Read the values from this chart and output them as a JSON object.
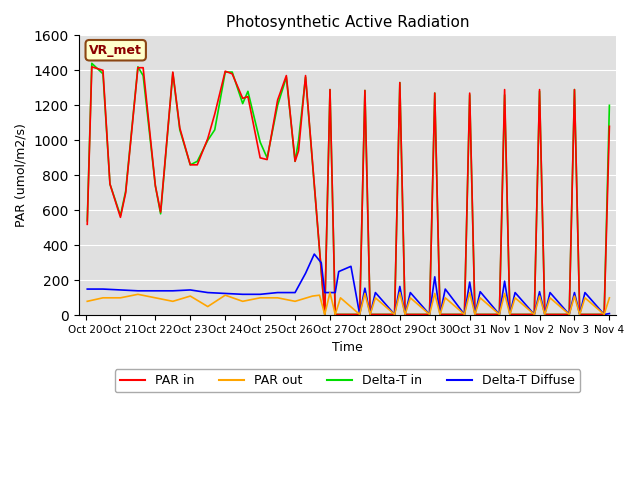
{
  "title": "Photosynthetic Active Radiation",
  "ylabel": "PAR (umol/m2/s)",
  "xlabel": "Time",
  "annotation": "VR_met",
  "ylim": [
    0,
    1600
  ],
  "yticks": [
    0,
    200,
    400,
    600,
    800,
    1000,
    1200,
    1400,
    1600
  ],
  "bg_color": "#e0e0e0",
  "x_labels": [
    "Oct 20",
    "Oct 21",
    "Oct 22",
    "Oct 23",
    "Oct 24",
    "Oct 25",
    "Oct 26",
    "Oct 27",
    "Oct 28",
    "Oct 29",
    "Oct 30",
    "Oct 31",
    "Nov 1",
    "Nov 2",
    "Nov 3",
    "Nov 4"
  ],
  "color_par_in": "#ff0000",
  "color_par_out": "#ffa500",
  "color_delta_t_in": "#00dd00",
  "color_delta_t_diffuse": "#0000ff",
  "legend_labels": [
    "PAR in",
    "PAR out",
    "Delta-T in",
    "Delta-T Diffuse"
  ],
  "par_in_x": [
    0.05,
    0.18,
    0.5,
    0.7,
    1.0,
    1.15,
    1.5,
    1.65,
    2.0,
    2.15,
    2.5,
    2.7,
    3.0,
    3.2,
    3.5,
    3.7,
    4.0,
    4.2,
    4.5,
    4.65,
    5.0,
    5.2,
    5.5,
    5.75,
    6.0,
    6.1,
    6.3,
    6.85,
    7.0,
    7.15,
    7.85,
    8.0,
    8.15,
    8.85,
    9.0,
    9.15,
    9.85,
    10.0,
    10.15,
    10.85,
    11.0,
    11.15,
    11.85,
    12.0,
    12.15,
    12.85,
    13.0,
    13.15,
    13.85,
    14.0,
    14.15,
    14.85,
    15.0
  ],
  "par_in_y": [
    520,
    1420,
    1400,
    750,
    560,
    700,
    1415,
    1415,
    740,
    590,
    1390,
    1070,
    860,
    860,
    1010,
    1150,
    1395,
    1380,
    1240,
    1250,
    900,
    890,
    1230,
    1370,
    880,
    940,
    1370,
    5,
    1290,
    5,
    5,
    1285,
    5,
    5,
    1330,
    5,
    5,
    1270,
    5,
    5,
    1270,
    5,
    5,
    1290,
    5,
    5,
    1290,
    5,
    5,
    1290,
    5,
    5,
    1080
  ],
  "par_out_x": [
    0.05,
    0.5,
    1.0,
    1.5,
    2.0,
    2.5,
    3.0,
    3.5,
    4.0,
    4.5,
    5.0,
    5.5,
    6.0,
    6.5,
    6.7,
    6.85,
    7.0,
    7.15,
    7.3,
    7.85,
    8.0,
    8.15,
    8.3,
    8.85,
    9.0,
    9.15,
    9.3,
    9.85,
    10.0,
    10.15,
    10.3,
    10.85,
    11.0,
    11.15,
    11.3,
    11.85,
    12.0,
    12.15,
    12.3,
    12.85,
    13.0,
    13.15,
    13.3,
    13.85,
    14.0,
    14.15,
    14.3,
    14.85,
    15.0
  ],
  "par_out_y": [
    80,
    100,
    100,
    120,
    100,
    80,
    110,
    50,
    115,
    80,
    100,
    100,
    80,
    110,
    115,
    5,
    130,
    5,
    100,
    5,
    125,
    5,
    100,
    5,
    130,
    5,
    100,
    5,
    125,
    5,
    100,
    5,
    130,
    5,
    100,
    5,
    125,
    5,
    100,
    5,
    110,
    5,
    100,
    5,
    110,
    5,
    100,
    5,
    100
  ],
  "dti_x": [
    0.05,
    0.18,
    0.5,
    0.7,
    1.0,
    1.15,
    1.5,
    1.65,
    2.0,
    2.15,
    2.5,
    2.7,
    3.0,
    3.2,
    3.5,
    3.7,
    4.0,
    4.2,
    4.5,
    4.65,
    5.0,
    5.2,
    5.5,
    5.75,
    6.0,
    6.1,
    6.3,
    6.85,
    7.0,
    7.15,
    7.85,
    8.0,
    8.15,
    8.85,
    9.0,
    9.15,
    9.85,
    10.0,
    10.15,
    10.85,
    11.0,
    11.15,
    11.85,
    12.0,
    12.15,
    12.85,
    13.0,
    13.15,
    13.85,
    14.0,
    14.15,
    14.85,
    15.0
  ],
  "dti_y": [
    540,
    1440,
    1380,
    750,
    570,
    710,
    1420,
    1370,
    740,
    580,
    1385,
    1060,
    860,
    880,
    1000,
    1060,
    1390,
    1390,
    1210,
    1280,
    990,
    900,
    1200,
    1360,
    880,
    1000,
    1360,
    5,
    1290,
    5,
    5,
    1285,
    5,
    5,
    1330,
    5,
    5,
    1270,
    5,
    5,
    1260,
    5,
    5,
    1260,
    5,
    5,
    1280,
    5,
    5,
    1290,
    5,
    5,
    1200
  ],
  "dtd_x": [
    0.05,
    0.5,
    1.0,
    1.5,
    2.0,
    2.5,
    3.0,
    3.5,
    4.0,
    4.5,
    5.0,
    5.5,
    6.0,
    6.3,
    6.55,
    6.75,
    6.85,
    7.0,
    7.15,
    7.25,
    7.6,
    7.85,
    8.0,
    8.15,
    8.3,
    8.85,
    9.0,
    9.15,
    9.3,
    9.85,
    10.0,
    10.15,
    10.3,
    10.85,
    11.0,
    11.15,
    11.3,
    11.85,
    12.0,
    12.15,
    12.3,
    12.85,
    13.0,
    13.15,
    13.3,
    13.85,
    14.0,
    14.15,
    14.3,
    14.85,
    15.0
  ],
  "dtd_y": [
    150,
    150,
    145,
    140,
    140,
    140,
    145,
    130,
    125,
    120,
    120,
    130,
    130,
    240,
    350,
    300,
    130,
    130,
    130,
    250,
    280,
    5,
    155,
    5,
    130,
    5,
    165,
    5,
    130,
    5,
    220,
    5,
    150,
    5,
    190,
    5,
    135,
    5,
    195,
    5,
    130,
    5,
    135,
    5,
    130,
    5,
    130,
    5,
    130,
    5,
    10
  ]
}
